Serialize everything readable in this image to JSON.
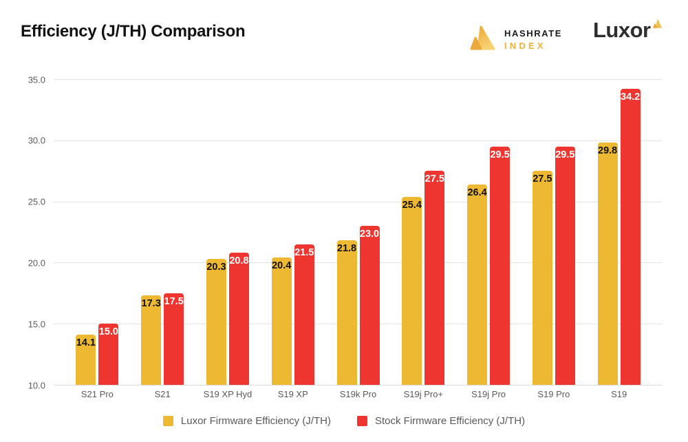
{
  "header": {
    "hashrate_logo": {
      "line1": "HASHRATE",
      "line2": "INDEX"
    },
    "luxor_logo": {
      "text": "Luxor"
    }
  },
  "colors": {
    "luxor_gold": "#edb933",
    "stock_red": "#ee3530",
    "gridline": "#e4e4e4",
    "axis_text": "#5a5a5a",
    "title_text": "#121212"
  },
  "chart_data": {
    "type": "bar",
    "title": "Efficiency (J/TH) Comparison",
    "categories": [
      "S21 Pro",
      "S21",
      "S19 XP Hyd",
      "S19 XP",
      "S19k Pro",
      "S19j Pro+",
      "S19j Pro",
      "S19 Pro",
      "S19"
    ],
    "series": [
      {
        "name": "Luxor Firmware Efficiency (J/TH)",
        "color": "#edb933",
        "label_color": "#111111",
        "values": [
          14.1,
          17.3,
          20.3,
          20.4,
          21.8,
          25.4,
          26.4,
          27.5,
          29.8
        ]
      },
      {
        "name": "Stock Firmware Efficiency (J/TH)",
        "color": "#ee3530",
        "label_color": "#ffffff",
        "values": [
          15.0,
          17.5,
          20.8,
          21.5,
          23.0,
          27.5,
          29.5,
          29.5,
          34.2
        ]
      }
    ],
    "xlabel": "",
    "ylabel": "",
    "ylim": [
      10,
      35
    ],
    "yticks": [
      35.0,
      30.0,
      25.0,
      20.0,
      15.0,
      10.0
    ],
    "grid": true,
    "legend_position": "bottom"
  }
}
